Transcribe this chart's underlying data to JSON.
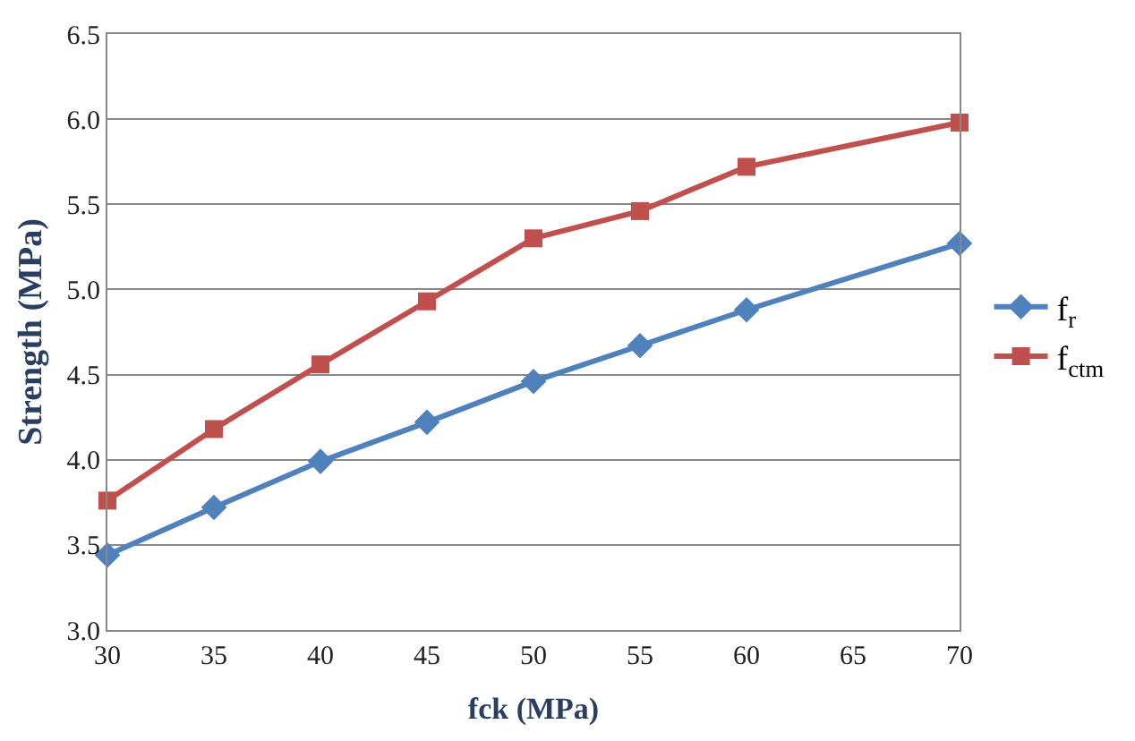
{
  "chart_data": {
    "type": "line",
    "xlabel": "fck (MPa)",
    "ylabel": "Strength (MPa)",
    "x": [
      30,
      35,
      40,
      45,
      50,
      55,
      60,
      70
    ],
    "series": [
      {
        "name": "f$_{r}$",
        "color": "#4f81bd",
        "marker": "diamond",
        "values": [
          3.44,
          3.72,
          3.99,
          4.22,
          4.46,
          4.67,
          4.88,
          5.27
        ]
      },
      {
        "name": "f$_{ctm}$",
        "color": "#c0504d",
        "marker": "square",
        "values": [
          3.76,
          4.18,
          4.56,
          4.93,
          5.3,
          5.46,
          5.72,
          5.98
        ]
      }
    ],
    "xlim": [
      30,
      70
    ],
    "xticks": [
      30,
      35,
      40,
      45,
      50,
      55,
      60,
      65,
      70
    ],
    "ylim": [
      3.0,
      6.5
    ],
    "yticks": [
      {
        "value": 3.0,
        "label": "3.0"
      },
      {
        "value": 3.5,
        "label": "3.5"
      },
      {
        "value": 4.0,
        "label": "4.0"
      },
      {
        "value": 4.5,
        "label": "4.5"
      },
      {
        "value": 5.0,
        "label": "5.0"
      },
      {
        "value": 5.5,
        "label": "5.5"
      },
      {
        "value": 6.0,
        "label": "6.0"
      },
      {
        "value": 6.5,
        "label": "6.5"
      }
    ],
    "grid": "y",
    "legend": "right"
  }
}
